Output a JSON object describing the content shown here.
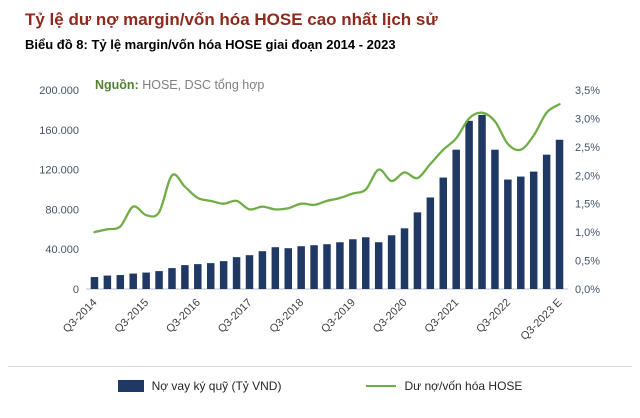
{
  "header": {
    "title": "Tỷ lệ dư nợ margin/vốn hóa HOSE cao nhất lịch sử",
    "subtitle": "Biểu đồ 8: Tỷ lệ margin/vốn hóa HOSE giai đoạn 2014 - 2023"
  },
  "source": {
    "label": "Nguồn:",
    "text": "HOSE, DSC tổng hợp"
  },
  "legend": {
    "bars": "Nợ vay ký quỹ (Tỷ VND)",
    "line": "Dư nợ/vốn hóa HOSE"
  },
  "colors": {
    "title": "#8E2A1E",
    "bars": "#1F3864",
    "line": "#70AD47",
    "source_label": "#548235",
    "source_text": "#7F7F7F",
    "axis_text": "#44546A",
    "axis_line": "#BFBFBF"
  },
  "chart_data": {
    "type": "bar",
    "subtype": "combo-bar-line",
    "title": "Biểu đồ 8: Tỷ lệ margin/vốn hóa HOSE giai đoạn 2014 - 2023",
    "grid": false,
    "legend_position": "bottom",
    "categories": [
      "Q3-2014",
      "Q4-2014",
      "Q1-2015",
      "Q2-2015",
      "Q3-2015",
      "Q4-2015",
      "Q1-2016",
      "Q2-2016",
      "Q3-2016",
      "Q4-2016",
      "Q1-2017",
      "Q2-2017",
      "Q3-2017",
      "Q4-2017",
      "Q1-2018",
      "Q2-2018",
      "Q3-2018",
      "Q4-2018",
      "Q1-2019",
      "Q2-2019",
      "Q3-2019",
      "Q4-2019",
      "Q1-2020",
      "Q2-2020",
      "Q3-2020",
      "Q4-2020",
      "Q1-2021",
      "Q2-2021",
      "Q3-2021",
      "Q4-2021",
      "Q1-2022",
      "Q2-2022",
      "Q3-2022",
      "Q4-2022",
      "Q1-2023",
      "Q2-2023",
      "Q3-2023 E"
    ],
    "series": [
      {
        "name": "Nợ vay ký quỹ (Tỷ VND)",
        "type": "bar",
        "axis": "left",
        "values": [
          12000,
          13500,
          14000,
          15500,
          16500,
          18000,
          21000,
          24000,
          25000,
          26000,
          28000,
          32000,
          34000,
          38000,
          42000,
          41000,
          43000,
          44000,
          45000,
          47000,
          50000,
          52000,
          47000,
          54000,
          61000,
          77000,
          92000,
          112000,
          140000,
          169000,
          175000,
          140000,
          110000,
          113000,
          118000,
          135000,
          150000
        ]
      },
      {
        "name": "Dư nợ/vốn hóa HOSE",
        "type": "line",
        "axis": "right",
        "values": [
          1.0,
          1.05,
          1.1,
          1.45,
          1.3,
          1.35,
          2.0,
          1.8,
          1.6,
          1.55,
          1.5,
          1.55,
          1.4,
          1.45,
          1.4,
          1.42,
          1.5,
          1.48,
          1.55,
          1.6,
          1.68,
          1.75,
          2.1,
          1.9,
          2.05,
          1.95,
          2.2,
          2.45,
          2.65,
          3.0,
          3.1,
          2.95,
          2.55,
          2.45,
          2.7,
          3.1,
          3.25
        ]
      }
    ],
    "y_left": {
      "min": 0,
      "max": 200000,
      "tick_values": [
        0,
        40000,
        80000,
        120000,
        160000,
        200000
      ],
      "tick_labels": [
        "0",
        "40.000",
        "80.000",
        "120.000",
        "160.000",
        "200.000"
      ]
    },
    "y_right": {
      "min": 0,
      "max": 3.5,
      "tick_values": [
        0,
        0.5,
        1,
        1.5,
        2,
        2.5,
        3,
        3.5
      ],
      "tick_labels": [
        "0,0%",
        "0,5%",
        "1,0%",
        "1,5%",
        "2,0%",
        "2,5%",
        "3,0%",
        "3,5%"
      ]
    },
    "x_tick_labels": [
      "Q3-2014",
      "Q3-2015",
      "Q3-2016",
      "Q3-2017",
      "Q3-2018",
      "Q3-2019",
      "Q3-2020",
      "Q3-2021",
      "Q3-2022",
      "Q3-2023 E"
    ],
    "x_tick_every_n": 4
  }
}
